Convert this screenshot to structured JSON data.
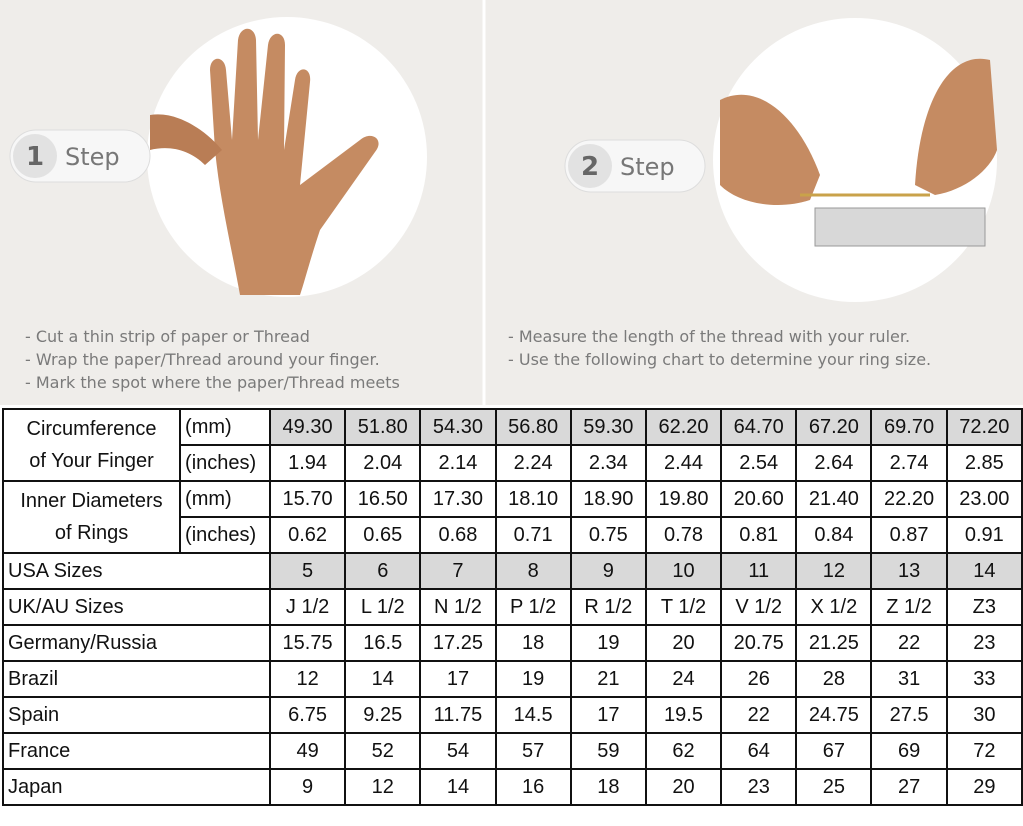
{
  "steps": [
    {
      "number": "1",
      "label": "Step",
      "instructions": [
        "- Cut a thin strip of paper or Thread",
        "- Wrap the paper/Thread around your finger.",
        "- Mark the spot where the paper/Thread meets"
      ]
    },
    {
      "number": "2",
      "label": "Step",
      "instructions": [
        "- Measure the length of the thread with your ruler.",
        "- Use the following chart to determine your ring size."
      ]
    }
  ],
  "table": {
    "groups": [
      {
        "label": [
          "Circumference",
          "of Your Finger"
        ],
        "rows": [
          {
            "unit": "(mm)",
            "values": [
              "49.30",
              "51.80",
              "54.30",
              "56.80",
              "59.30",
              "62.20",
              "64.70",
              "67.20",
              "69.70",
              "72.20"
            ]
          },
          {
            "unit": "(inches)",
            "values": [
              "1.94",
              "2.04",
              "2.14",
              "2.24",
              "2.34",
              "2.44",
              "2.54",
              "2.64",
              "2.74",
              "2.85"
            ]
          }
        ]
      },
      {
        "label": [
          "Inner Diameters",
          "of Rings"
        ],
        "rows": [
          {
            "unit": "(mm)",
            "values": [
              "15.70",
              "16.50",
              "17.30",
              "18.10",
              "18.90",
              "19.80",
              "20.60",
              "21.40",
              "22.20",
              "23.00"
            ]
          },
          {
            "unit": "(inches)",
            "values": [
              "0.62",
              "0.65",
              "0.68",
              "0.71",
              "0.75",
              "0.78",
              "0.81",
              "0.84",
              "0.87",
              "0.91"
            ]
          }
        ]
      }
    ],
    "sizes": [
      {
        "label": "USA Sizes",
        "values": [
          "5",
          "6",
          "7",
          "8",
          "9",
          "10",
          "11",
          "12",
          "13",
          "14"
        ]
      },
      {
        "label": "UK/AU Sizes",
        "values": [
          "J 1/2",
          "L 1/2",
          "N 1/2",
          "P 1/2",
          "R 1/2",
          "T 1/2",
          "V 1/2",
          "X 1/2",
          "Z 1/2",
          "Z3"
        ]
      },
      {
        "label": "Germany/Russia",
        "values": [
          "15.75",
          "16.5",
          "17.25",
          "18",
          "19",
          "20",
          "20.75",
          "21.25",
          "22",
          "23"
        ]
      },
      {
        "label": "Brazil",
        "values": [
          "12",
          "14",
          "17",
          "19",
          "21",
          "24",
          "26",
          "28",
          "31",
          "33"
        ]
      },
      {
        "label": "Spain",
        "values": [
          "6.75",
          "9.25",
          "11.75",
          "14.5",
          "17",
          "19.5",
          "22",
          "24.75",
          "27.5",
          "30"
        ]
      },
      {
        "label": "France",
        "values": [
          "49",
          "52",
          "54",
          "57",
          "59",
          "62",
          "64",
          "67",
          "69",
          "72"
        ]
      },
      {
        "label": "Japan",
        "values": [
          "9",
          "12",
          "14",
          "16",
          "18",
          "20",
          "23",
          "25",
          "27",
          "29"
        ]
      }
    ]
  }
}
